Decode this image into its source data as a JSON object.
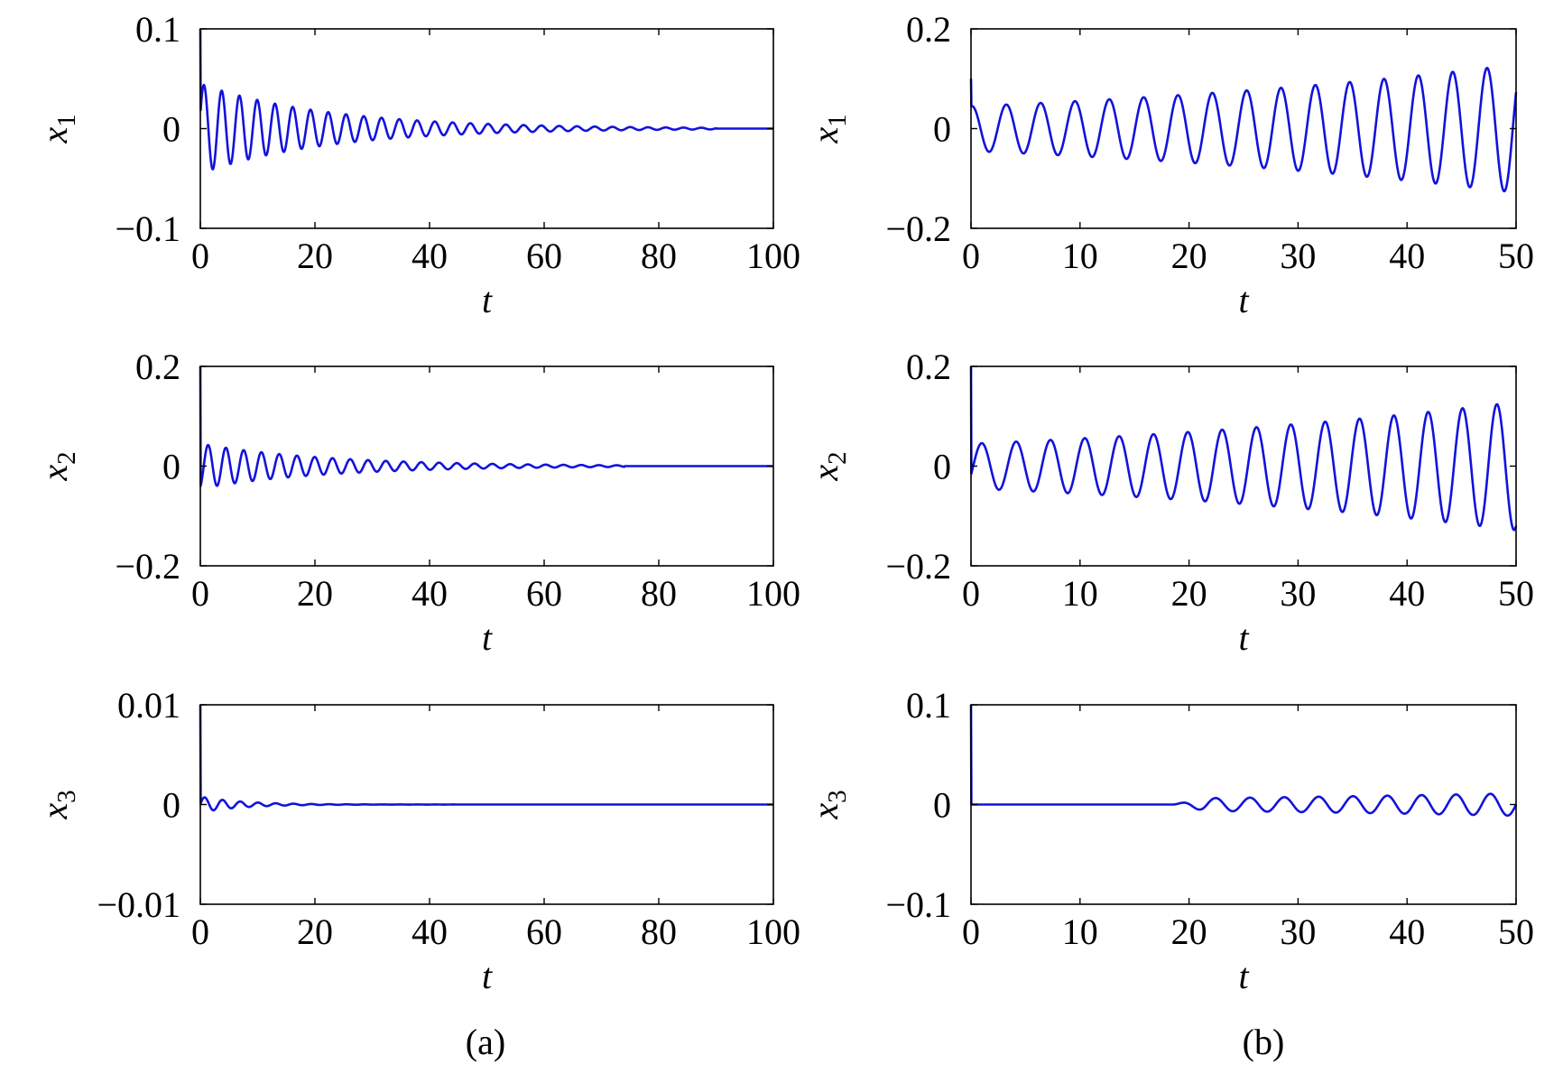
{
  "figure": {
    "panel_labels": [
      "(a)",
      "(b)"
    ]
  },
  "colors": {
    "line": "#1212dd",
    "axis": "#000000"
  },
  "chart_data": [
    {
      "id": "a1",
      "type": "line",
      "panel": "(a)",
      "xlabel": "t",
      "ylabel_var": "x",
      "ylabel_sub": "1",
      "xlim": [
        0,
        100
      ],
      "ylim": [
        -0.1,
        0.1
      ],
      "xticks": [
        0,
        20,
        40,
        60,
        80,
        100
      ],
      "xtick_labels": [
        "0",
        "20",
        "40",
        "60",
        "80",
        "100"
      ],
      "yticks": [
        -0.1,
        0,
        0.1
      ],
      "ytick_labels": [
        "−0.1",
        "0",
        "0.1"
      ],
      "signal": {
        "start_value": 0.1,
        "amplitude": 0.045,
        "decay_rate": 0.045,
        "period": 3.1,
        "phase": 0.3,
        "end_t": 90
      }
    },
    {
      "id": "b1",
      "type": "line",
      "panel": "(b)",
      "xlabel": "t",
      "ylabel_var": "x",
      "ylabel_sub": "1",
      "xlim": [
        0,
        50
      ],
      "ylim": [
        -0.2,
        0.2
      ],
      "xticks": [
        0,
        10,
        20,
        30,
        40,
        50
      ],
      "xtick_labels": [
        "0",
        "10",
        "20",
        "30",
        "40",
        "50"
      ],
      "yticks": [
        -0.2,
        0,
        0.2
      ],
      "ytick_labels": [
        "−0.2",
        "0",
        "0.2"
      ],
      "signal": {
        "start_value": 0.1,
        "amplitude": 0.045,
        "growth_rate": 0.021,
        "period": 3.15,
        "phase": 1.4,
        "end_t": 50
      }
    },
    {
      "id": "a2",
      "type": "line",
      "panel": "(a)",
      "xlabel": "t",
      "ylabel_var": "x",
      "ylabel_sub": "2",
      "xlim": [
        0,
        100
      ],
      "ylim": [
        -0.2,
        0.2
      ],
      "xticks": [
        0,
        20,
        40,
        60,
        80,
        100
      ],
      "xtick_labels": [
        "0",
        "20",
        "40",
        "60",
        "80",
        "100"
      ],
      "yticks": [
        -0.2,
        0,
        0.2
      ],
      "ytick_labels": [
        "−0.2",
        "0",
        "0.2"
      ],
      "signal": {
        "start_value": 0.2,
        "amplitude": 0.045,
        "decay_rate": 0.045,
        "period": 3.1,
        "phase": -1.2,
        "end_t": 74
      }
    },
    {
      "id": "b2",
      "type": "line",
      "panel": "(b)",
      "xlabel": "t",
      "ylabel_var": "x",
      "ylabel_sub": "2",
      "xlim": [
        0,
        50
      ],
      "ylim": [
        -0.2,
        0.2
      ],
      "xticks": [
        0,
        10,
        20,
        30,
        40,
        50
      ],
      "xtick_labels": [
        "0",
        "10",
        "20",
        "30",
        "40",
        "50"
      ],
      "yticks": [
        -0.2,
        0,
        0.2
      ],
      "ytick_labels": [
        "−0.2",
        "0",
        "0.2"
      ],
      "signal": {
        "start_value": 0.2,
        "amplitude": 0.045,
        "growth_rate": 0.021,
        "period": 3.15,
        "phase": -0.4,
        "end_t": 50
      }
    },
    {
      "id": "a3",
      "type": "line",
      "panel": "(a)",
      "xlabel": "t",
      "ylabel_var": "x",
      "ylabel_sub": "3",
      "xlim": [
        0,
        100
      ],
      "ylim": [
        -0.01,
        0.01
      ],
      "xticks": [
        0,
        20,
        40,
        60,
        80,
        100
      ],
      "xtick_labels": [
        "0",
        "20",
        "40",
        "60",
        "80",
        "100"
      ],
      "yticks": [
        -0.01,
        0,
        0.01
      ],
      "ytick_labels": [
        "−0.01",
        "0",
        "0.01"
      ],
      "signal": {
        "start_value": 0.01,
        "amplitude": 0.0008,
        "decay_rate": 0.14,
        "period": 3.1,
        "phase": 0.0,
        "end_t": 100
      }
    },
    {
      "id": "b3",
      "type": "line",
      "panel": "(b)",
      "xlabel": "t",
      "ylabel_var": "x",
      "ylabel_sub": "3",
      "xlim": [
        0,
        50
      ],
      "ylim": [
        -0.1,
        0.1
      ],
      "xticks": [
        0,
        10,
        20,
        30,
        40,
        50
      ],
      "xtick_labels": [
        "0",
        "10",
        "20",
        "30",
        "40",
        "50"
      ],
      "yticks": [
        -0.1,
        0,
        0.1
      ],
      "ytick_labels": [
        "−0.1",
        "0",
        "0.1"
      ],
      "signal": {
        "start_value": 0.1,
        "amplitude": 0.006,
        "onset_t": 18.5,
        "growth_rate": 0.02,
        "period": 3.15,
        "phase": 0.0,
        "end_t": 50
      }
    }
  ]
}
